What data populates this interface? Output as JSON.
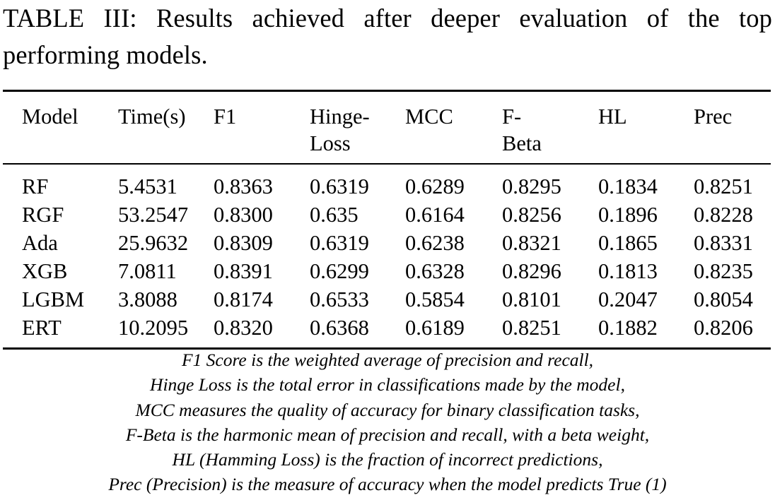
{
  "caption": "TABLE III: Results achieved after deeper evaluation of the top performing models.",
  "headers": [
    {
      "line1": "Model",
      "line2": ""
    },
    {
      "line1": "Time(s)",
      "line2": ""
    },
    {
      "line1": "F1",
      "line2": ""
    },
    {
      "line1": "Hinge-",
      "line2": "Loss"
    },
    {
      "line1": "MCC",
      "line2": ""
    },
    {
      "line1": "F-",
      "line2": "Beta"
    },
    {
      "line1": "HL",
      "line2": ""
    },
    {
      "line1": "Prec",
      "line2": ""
    }
  ],
  "rows": [
    [
      "RF",
      "5.4531",
      "0.8363",
      "0.6319",
      "0.6289",
      "0.8295",
      "0.1834",
      "0.8251"
    ],
    [
      "RGF",
      "53.2547",
      "0.8300",
      "0.635",
      "0.6164",
      "0.8256",
      "0.1896",
      "0.8228"
    ],
    [
      "Ada",
      "25.9632",
      "0.8309",
      "0.6319",
      "0.6238",
      "0.8321",
      "0.1865",
      "0.8331"
    ],
    [
      "XGB",
      "7.0811",
      "0.8391",
      "0.6299",
      "0.6328",
      "0.8296",
      "0.1813",
      "0.8235"
    ],
    [
      "LGBM",
      "3.8088",
      "0.8174",
      "0.6533",
      "0.5854",
      "0.8101",
      "0.2047",
      "0.8054"
    ],
    [
      "ERT",
      "10.2095",
      "0.8320",
      "0.6368",
      "0.6189",
      "0.8251",
      "0.1882",
      "0.8206"
    ]
  ],
  "notes": [
    "F1 Score is the weighted average of precision and recall,",
    "Hinge Loss is the total error in classifications made by the model,",
    "MCC measures the quality of accuracy for binary classification tasks,",
    "F-Beta is the harmonic mean of precision and recall, with a beta weight,",
    "HL (Hamming Loss) is the fraction of incorrect predictions,",
    "Prec (Precision) is the measure of accuracy when the model predicts True (1)"
  ]
}
